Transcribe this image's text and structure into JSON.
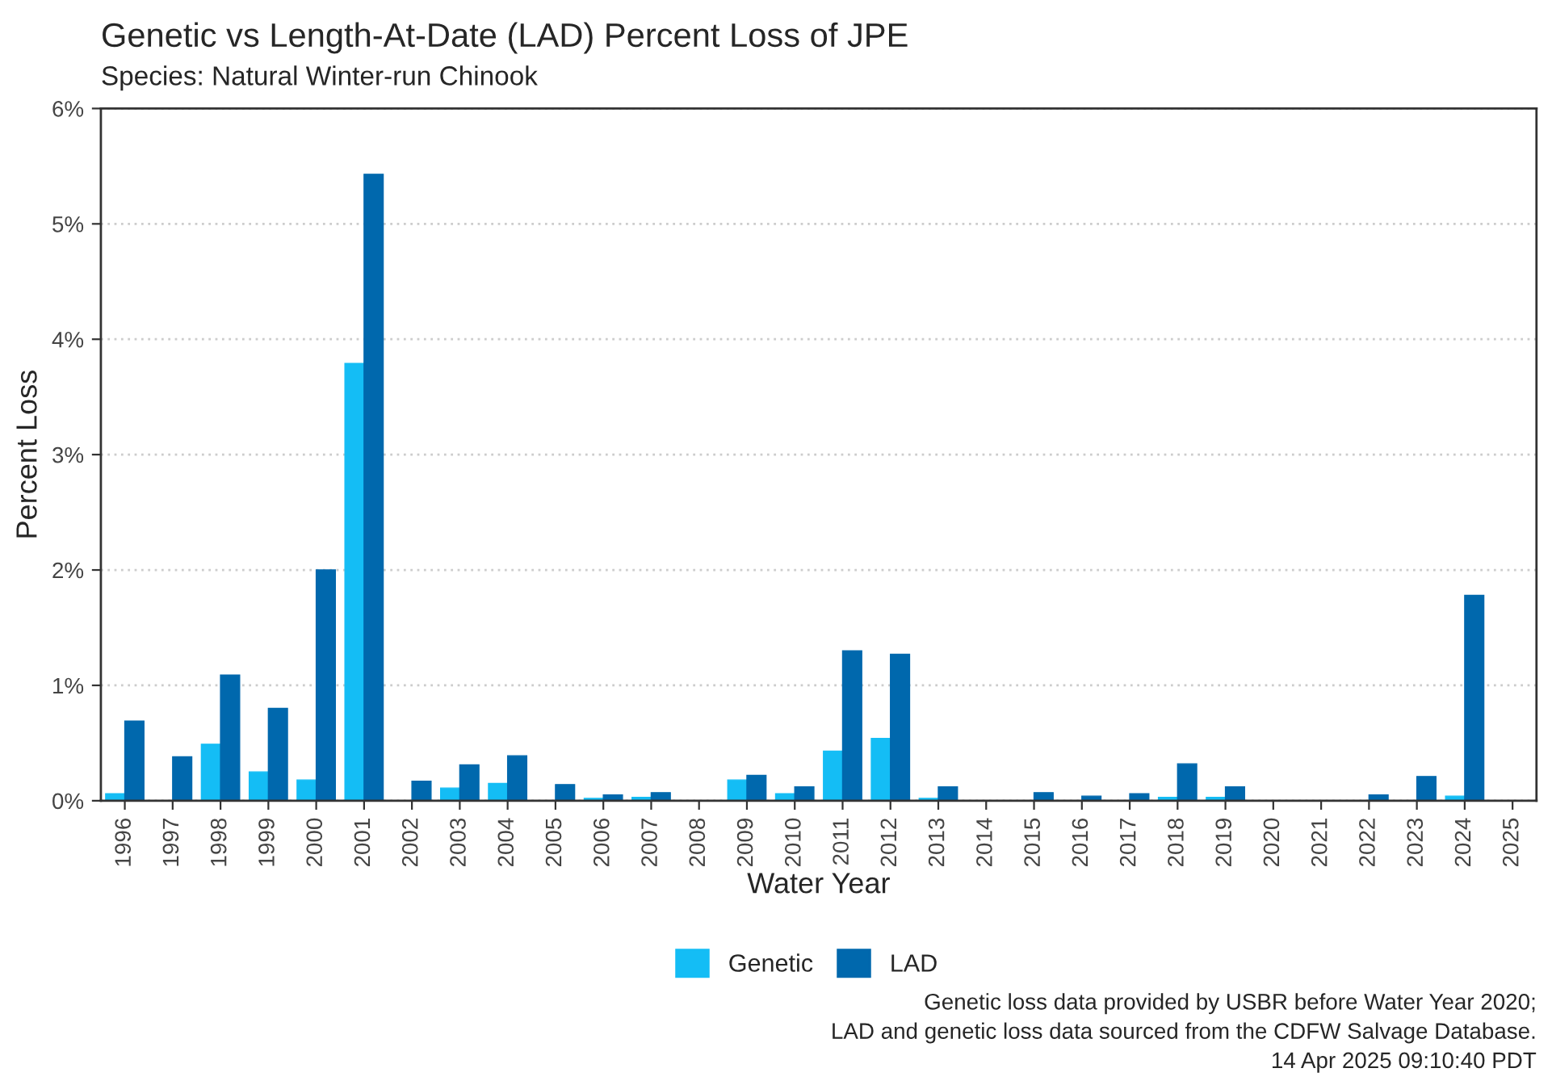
{
  "chart_data": {
    "type": "bar",
    "title": "Genetic vs Length-At-Date (LAD) Percent Loss of JPE",
    "subtitle": "Species: Natural Winter-run Chinook",
    "xlabel": "Water Year",
    "ylabel": "Percent Loss",
    "categories": [
      "1996",
      "1997",
      "1998",
      "1999",
      "2000",
      "2001",
      "2002",
      "2003",
      "2004",
      "2005",
      "2006",
      "2007",
      "2008",
      "2009",
      "2010",
      "2011",
      "2012",
      "2013",
      "2014",
      "2015",
      "2016",
      "2017",
      "2018",
      "2019",
      "2020",
      "2021",
      "2022",
      "2023",
      "2024",
      "2025"
    ],
    "series": [
      {
        "name": "Genetic",
        "color": "#14bdf5",
        "values": [
          0.06,
          0,
          0.49,
          0.25,
          0.18,
          3.79,
          null,
          0.11,
          0.15,
          0,
          0.02,
          0.03,
          0,
          0.18,
          0.06,
          0.43,
          0.54,
          0.02,
          0,
          0,
          0,
          0,
          0.03,
          0.03,
          0,
          0,
          0,
          0,
          0.04,
          0
        ]
      },
      {
        "name": "LAD",
        "color": "#0068ad",
        "values": [
          0.69,
          0.38,
          1.09,
          0.8,
          2.0,
          5.43,
          0.17,
          0.31,
          0.39,
          0.14,
          0.05,
          0.07,
          0,
          0.22,
          0.12,
          1.3,
          1.27,
          0.12,
          null,
          0.07,
          0.04,
          0.06,
          0.32,
          0.12,
          null,
          0,
          0.05,
          0.21,
          1.78,
          null
        ]
      }
    ],
    "ylim": [
      0,
      6
    ],
    "yticks": [
      {
        "value": 0,
        "label": "0%"
      },
      {
        "value": 1,
        "label": "1%"
      },
      {
        "value": 2,
        "label": "2%"
      },
      {
        "value": 3,
        "label": "3%"
      },
      {
        "value": 4,
        "label": "4%"
      },
      {
        "value": 5,
        "label": "5%"
      },
      {
        "value": 6,
        "label": "6%"
      }
    ],
    "grid": "y",
    "legend": "bottom",
    "annotations": [
      "Genetic loss data provided by USBR before Water Year 2020;",
      "LAD and genetic loss data sourced from the CDFW Salvage Database.",
      "14 Apr 2025 09:10:40 PDT"
    ]
  }
}
